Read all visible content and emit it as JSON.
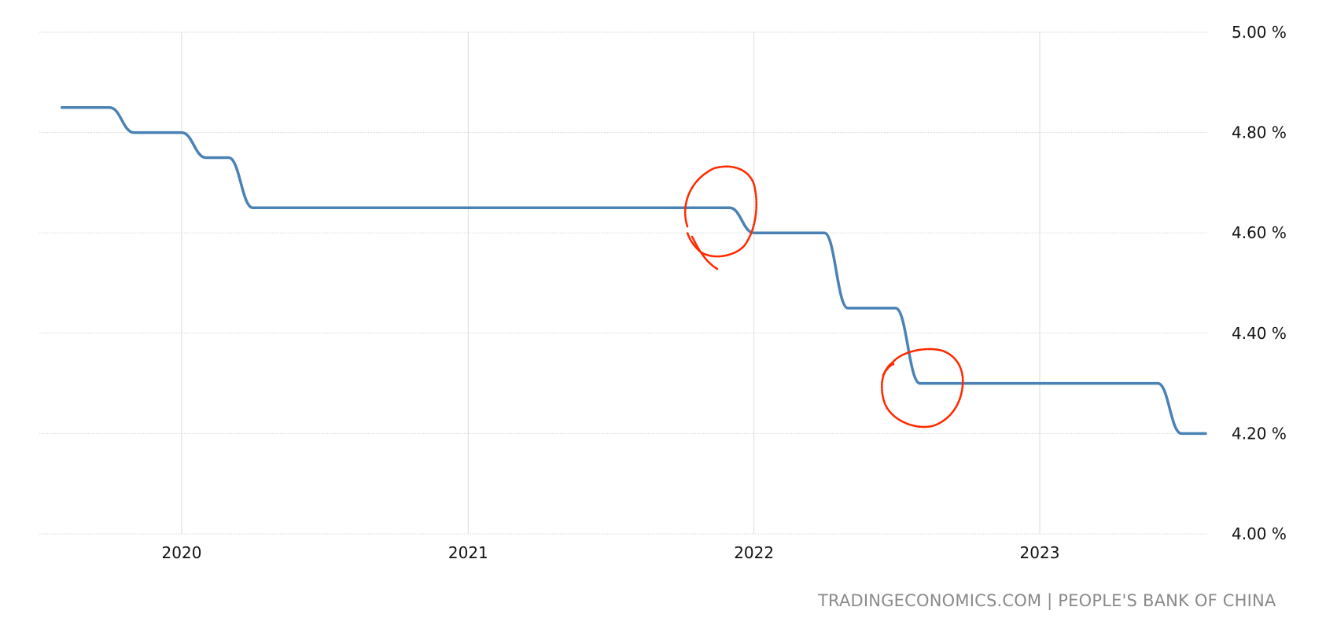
{
  "chart_data": {
    "type": "line",
    "title": "",
    "xlabel": "",
    "ylabel": "",
    "ylim": [
      4.0,
      5.0
    ],
    "y_ticks": [
      {
        "value": 5.0,
        "label": "5.00 %"
      },
      {
        "value": 4.8,
        "label": "4.80 %"
      },
      {
        "value": 4.6,
        "label": "4.60 %"
      },
      {
        "value": 4.4,
        "label": "4.40 %"
      },
      {
        "value": 4.2,
        "label": "4.20 %"
      },
      {
        "value": 4.0,
        "label": "4.00 %"
      }
    ],
    "x_ticks": [
      "2020",
      "2021",
      "2022",
      "2023"
    ],
    "x_tick_dates": [
      "2020-01-01",
      "2021-01-01",
      "2022-01-01",
      "2023-01-01"
    ],
    "grid": true,
    "y_axis_position": "right",
    "series": [
      {
        "color": "#4a82b5",
        "points": [
          {
            "x": "2019-08-01",
            "y": 4.85
          },
          {
            "x": "2019-09-01",
            "y": 4.85
          },
          {
            "x": "2019-10-01",
            "y": 4.85
          },
          {
            "x": "2019-11-01",
            "y": 4.8
          },
          {
            "x": "2019-12-01",
            "y": 4.8
          },
          {
            "x": "2020-01-01",
            "y": 4.8
          },
          {
            "x": "2020-02-01",
            "y": 4.75
          },
          {
            "x": "2020-03-01",
            "y": 4.75
          },
          {
            "x": "2020-04-01",
            "y": 4.65
          },
          {
            "x": "2020-05-01",
            "y": 4.65
          },
          {
            "x": "2021-11-01",
            "y": 4.65
          },
          {
            "x": "2021-12-01",
            "y": 4.65
          },
          {
            "x": "2022-01-01",
            "y": 4.6
          },
          {
            "x": "2022-02-01",
            "y": 4.6
          },
          {
            "x": "2022-03-01",
            "y": 4.6
          },
          {
            "x": "2022-04-01",
            "y": 4.6
          },
          {
            "x": "2022-05-01",
            "y": 4.45
          },
          {
            "x": "2022-06-01",
            "y": 4.45
          },
          {
            "x": "2022-07-01",
            "y": 4.45
          },
          {
            "x": "2022-08-01",
            "y": 4.3
          },
          {
            "x": "2022-09-01",
            "y": 4.3
          },
          {
            "x": "2023-05-01",
            "y": 4.3
          },
          {
            "x": "2023-06-01",
            "y": 4.3
          },
          {
            "x": "2023-07-01",
            "y": 4.2
          },
          {
            "x": "2023-08-01",
            "y": 4.2
          }
        ]
      }
    ]
  },
  "source": "TRADINGECONOMICS.COM | PEOPLE'S BANK OF CHINA",
  "annotation_color": "#ff2a00"
}
